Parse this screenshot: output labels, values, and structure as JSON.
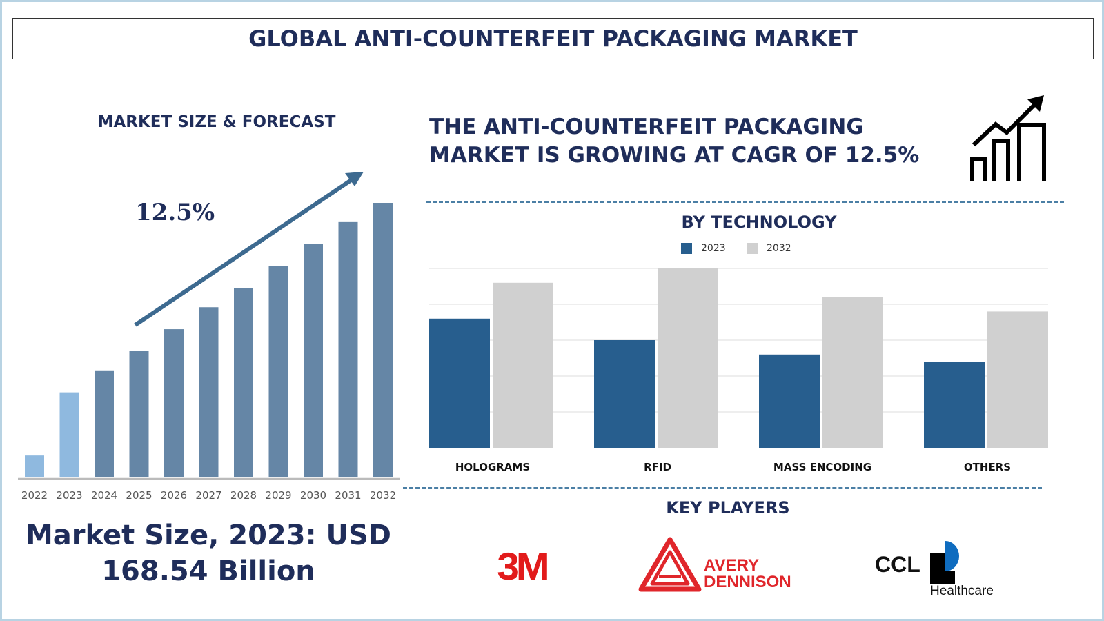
{
  "title": "GLOBAL ANTI-COUNTERFEIT PACKAGING MARKET",
  "left": {
    "heading": "MARKET SIZE & FORECAST",
    "cagr_label": "12.5%",
    "market_size_line1": "Market Size, 2023: USD",
    "market_size_line2": "168.54 Billion"
  },
  "right": {
    "heading_line1": "THE ANTI-COUNTERFEIT PACKAGING",
    "heading_line2": "MARKET IS GROWING AT CAGR OF 12.5%",
    "key_players_heading": "KEY PLAYERS",
    "key_players": [
      "3M",
      "AVERY DENNISON",
      "CCL Healthcare"
    ],
    "logo_text": {
      "threem": "3M",
      "avery1": "AVERY",
      "avery2": "DENNISON",
      "ccl": "CCL",
      "ccl_sub": "Healthcare"
    }
  },
  "chart_data": [
    {
      "type": "bar",
      "title": "MARKET SIZE & FORECAST",
      "categories": [
        "2022",
        "2023",
        "2024",
        "2025",
        "2026",
        "2027",
        "2028",
        "2029",
        "2030",
        "2031",
        "2032"
      ],
      "values_relative": [
        0.08,
        0.31,
        0.39,
        0.46,
        0.54,
        0.62,
        0.69,
        0.77,
        0.85,
        0.93,
        1.0
      ],
      "colors": {
        "historic": "#8fb9df",
        "forecast": "#6586a6"
      },
      "annotation": "12.5%",
      "grid": false
    },
    {
      "type": "bar",
      "title": "BY TECHNOLOGY",
      "categories": [
        "HOLOGRAMS",
        "RFID",
        "MASS ENCODING",
        "OTHERS"
      ],
      "series": [
        {
          "name": "2023",
          "values": [
            3.6,
            3.0,
            2.6,
            2.4
          ],
          "color": "#275e8e"
        },
        {
          "name": "2032",
          "values": [
            4.6,
            5.0,
            4.2,
            3.8
          ],
          "color": "#d0d0d0"
        }
      ],
      "ylim": [
        0,
        5
      ],
      "grid": true,
      "legend": "top"
    }
  ]
}
